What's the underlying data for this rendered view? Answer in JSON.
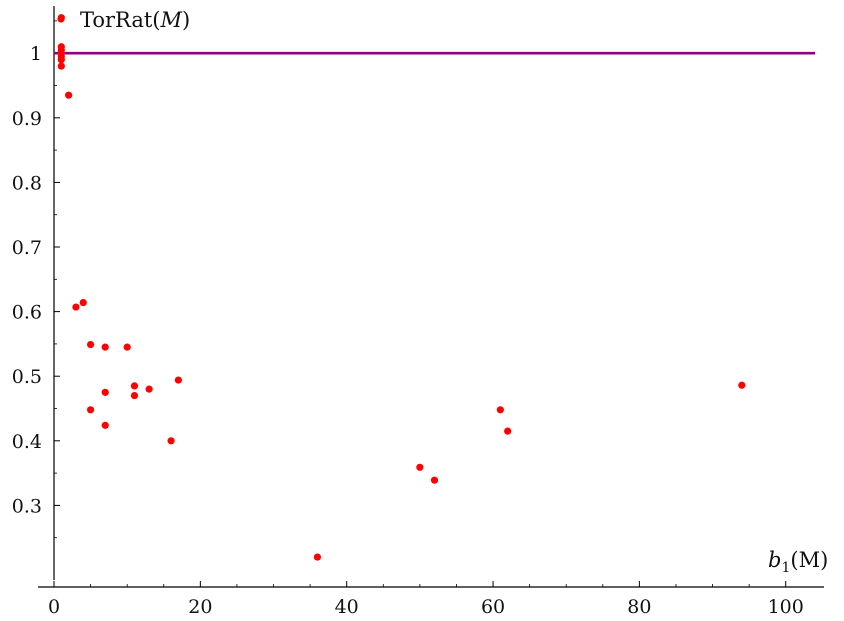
{
  "chart_data": {
    "type": "scatter",
    "series": [
      {
        "name": "TorRat(M)",
        "color": "#ff0000",
        "points": [
          {
            "x": 1,
            "y": 1.01
          },
          {
            "x": 1,
            "y": 1.005
          },
          {
            "x": 1,
            "y": 1.0
          },
          {
            "x": 1,
            "y": 0.995
          },
          {
            "x": 1,
            "y": 0.99
          },
          {
            "x": 1,
            "y": 0.98
          },
          {
            "x": 1,
            "y": 1.055
          },
          {
            "x": 2,
            "y": 0.935
          },
          {
            "x": 3,
            "y": 0.607
          },
          {
            "x": 4,
            "y": 0.614
          },
          {
            "x": 5,
            "y": 0.549
          },
          {
            "x": 5,
            "y": 0.448
          },
          {
            "x": 7,
            "y": 0.545
          },
          {
            "x": 7,
            "y": 0.475
          },
          {
            "x": 7,
            "y": 0.424
          },
          {
            "x": 10,
            "y": 0.545
          },
          {
            "x": 11,
            "y": 0.485
          },
          {
            "x": 11,
            "y": 0.47
          },
          {
            "x": 13,
            "y": 0.48
          },
          {
            "x": 16,
            "y": 0.4
          },
          {
            "x": 17,
            "y": 0.494
          },
          {
            "x": 36,
            "y": 0.22
          },
          {
            "x": 50,
            "y": 0.359
          },
          {
            "x": 52,
            "y": 0.339
          },
          {
            "x": 61,
            "y": 0.448
          },
          {
            "x": 62,
            "y": 0.415
          },
          {
            "x": 94,
            "y": 0.486
          }
        ]
      }
    ],
    "reference_line": {
      "y": 1,
      "color": "#8b008b"
    },
    "xlabel": "b",
    "xlabel_sub": "1",
    "xlabel_suffix": "(M)",
    "legend": {
      "position": "top-left",
      "entries": [
        {
          "text": "TorRat(",
          "italic": "M",
          "suffix": ")"
        }
      ]
    },
    "xlim": [
      0,
      104
    ],
    "ylim": [
      0.2,
      1.07
    ],
    "xticks": [
      0,
      20,
      40,
      60,
      80,
      100
    ],
    "xtick_labels": [
      "0",
      "20",
      "40",
      "60",
      "80",
      "100"
    ],
    "yticks": [
      0.3,
      0.4,
      0.5,
      0.6,
      0.7,
      0.8,
      0.9,
      1
    ],
    "ytick_labels": [
      "0.3",
      "0.4",
      "0.5",
      "0.6",
      "0.7",
      "0.8",
      "0.9",
      "1"
    ],
    "grid": false
  }
}
